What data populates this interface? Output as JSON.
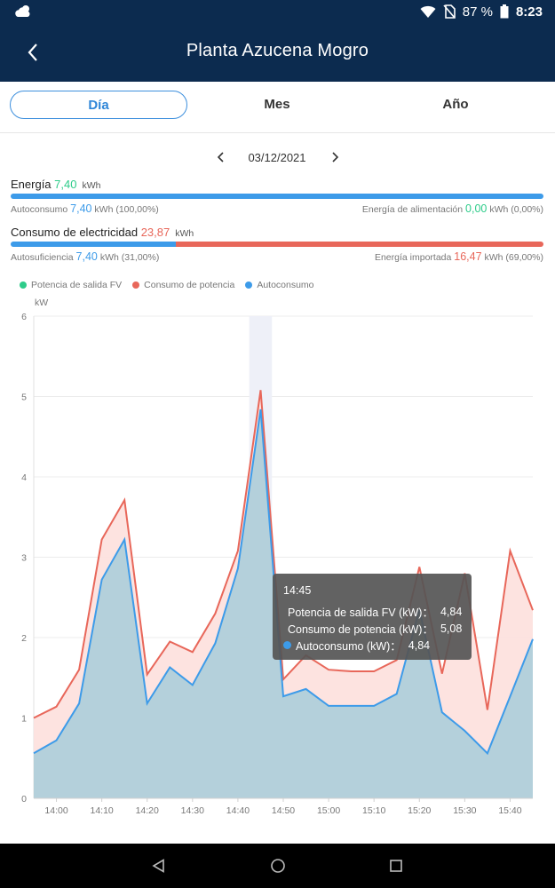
{
  "status_bar": {
    "battery": "87 %",
    "time": "8:23",
    "icons": [
      "cloud-icon",
      "wifi-icon",
      "no-sim-icon",
      "battery-icon"
    ]
  },
  "app_bar": {
    "title": "Planta Azucena Mogro",
    "back_icon": "back-chevron-icon"
  },
  "tabs": [
    {
      "label": "Día",
      "active": true
    },
    {
      "label": "Mes",
      "active": false
    },
    {
      "label": "Año",
      "active": false
    }
  ],
  "date_nav": {
    "date": "03/12/2021"
  },
  "energia": {
    "label": "Energía",
    "value": "7,40",
    "unit": "kWh",
    "autoconsumo_label": "Autoconsumo",
    "autoconsumo_value": "7,40",
    "autoconsumo_unit": "kWh",
    "autoconsumo_pct": "(100,00%)",
    "alimentacion_label": "Energía de alimentación",
    "alimentacion_value": "0,00",
    "alimentacion_unit": "kWh",
    "alimentacion_pct": "(0,00%)",
    "bar_fraction": 1.0
  },
  "consumo": {
    "label": "Consumo de electricidad",
    "value": "23,87",
    "unit": "kWh",
    "autosuf_label": "Autosuficiencia",
    "autosuf_value": "7,40",
    "autosuf_unit": "kWh",
    "autosuf_pct": "(31,00%)",
    "importada_label": "Energía importada",
    "importada_value": "16,47",
    "importada_unit": "kWh",
    "importada_pct": "(69,00%)",
    "bar_fraction": 0.31
  },
  "colors": {
    "header_bg": "#0c2b4f",
    "pv": "#2ecc8a",
    "consumption": "#e8675a",
    "self_consumption": "#3d9be9",
    "accent_blue": "#2f86d8"
  },
  "tooltip": {
    "time": "14:45",
    "rows": [
      {
        "label": "Potencia de salida FV (kW)：",
        "value": "4,84",
        "color": "#2ecc8a"
      },
      {
        "label": "Consumo de potencia (kW)：",
        "value": "5,08",
        "color": "#e8675a"
      },
      {
        "label": "Autoconsumo (kW)：",
        "value": "4,84",
        "color": "#3d9be9"
      }
    ]
  },
  "chart_data": {
    "type": "area",
    "ylabel": "kW",
    "ylim": [
      0,
      6
    ],
    "yticks": [
      "0",
      "1",
      "2",
      "3",
      "4",
      "5",
      "6"
    ],
    "xtick_labels": [
      "14:00",
      "14:10",
      "14:20",
      "14:30",
      "14:40",
      "14:50",
      "15:00",
      "15:10",
      "15:20",
      "15:30",
      "15:40"
    ],
    "x": [
      "13:55",
      "14:00",
      "14:05",
      "14:10",
      "14:15",
      "14:20",
      "14:25",
      "14:30",
      "14:35",
      "14:40",
      "14:45",
      "14:50",
      "14:55",
      "15:00",
      "15:05",
      "15:10",
      "15:15",
      "15:20",
      "15:25",
      "15:30",
      "15:35",
      "15:40",
      "15:45"
    ],
    "highlight_x": "14:45",
    "legend": [
      "Potencia de salida FV",
      "Consumo de potencia",
      "Autoconsumo"
    ],
    "legend_position": "top-left",
    "series": [
      {
        "name": "Consumo de potencia",
        "color": "#e8675a",
        "values": [
          1.0,
          1.14,
          1.6,
          3.22,
          3.71,
          1.54,
          1.95,
          1.82,
          2.3,
          3.08,
          5.08,
          1.48,
          1.78,
          1.6,
          1.58,
          1.58,
          1.72,
          2.88,
          1.55,
          2.8,
          1.1,
          3.08,
          2.34
        ]
      },
      {
        "name": "Autoconsumo",
        "color": "#3d9be9",
        "values": [
          0.56,
          0.72,
          1.18,
          2.72,
          3.22,
          1.18,
          1.63,
          1.41,
          1.93,
          2.86,
          4.84,
          1.27,
          1.36,
          1.15,
          1.15,
          1.15,
          1.3,
          2.35,
          1.07,
          0.84,
          0.56,
          1.27,
          1.98
        ]
      }
    ]
  },
  "nav_bar": {
    "icons": [
      "back-triangle-icon",
      "home-circle-icon",
      "recents-square-icon"
    ]
  }
}
